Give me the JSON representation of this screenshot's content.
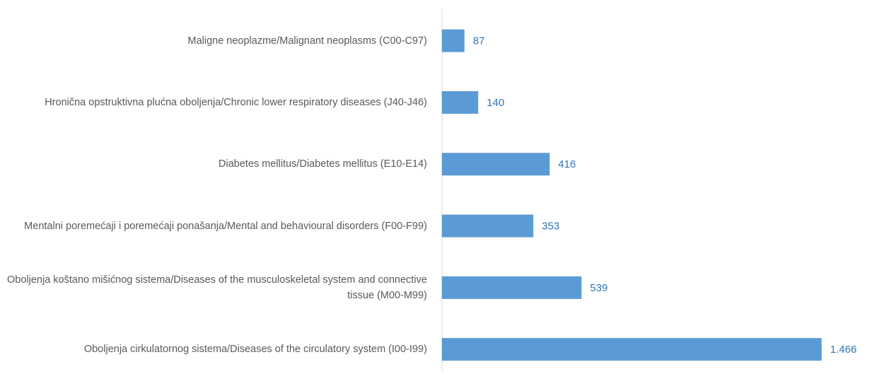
{
  "chart_data": {
    "type": "barh",
    "categories": [
      "Maligne neoplazme/Malignant neoplasms (C00-C97)",
      "Hronična opstruktivna plućna oboljenja/Chronic lower respiratory diseases (J40-J46)",
      "Diabetes mellitus/Diabetes mellitus (E10-E14)",
      "Mentalni poremećaji i poremećaji ponašanja/Mental and behavioural disorders (F00-F99)",
      "Oboljenja koštano mišićnog sistema/Diseases of the musculoskeletal system and connective tissue (M00-M99)",
      "Oboljenja cirkulatornog sistema/Diseases of the circulatory system (I00-I99)"
    ],
    "values": [
      87,
      140,
      416,
      353,
      539,
      1466
    ],
    "value_labels": [
      "87",
      "140",
      "416",
      "353",
      "539",
      "1.466"
    ],
    "color": "#5b9bd5"
  }
}
